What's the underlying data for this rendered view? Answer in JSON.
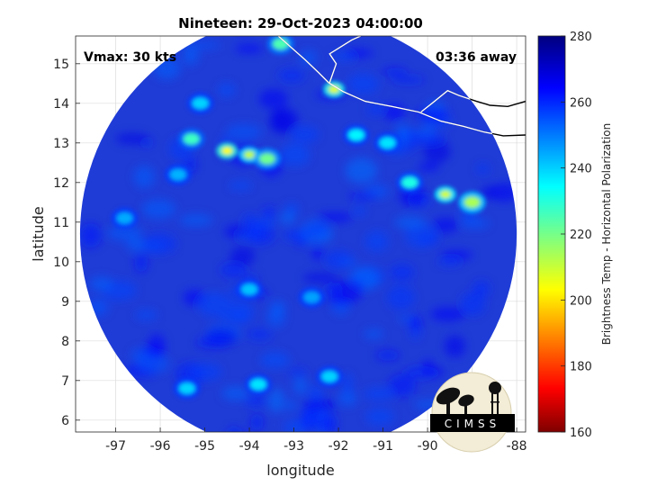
{
  "chart_data": {
    "type": "heatmap",
    "title": "Nineteen: 29-Oct-2023 04:00:00",
    "xlabel": "longitude",
    "ylabel": "latitude",
    "xlim": [
      -97.9,
      -87.8
    ],
    "ylim": [
      5.7,
      15.7
    ],
    "x_ticks": [
      -97,
      -96,
      -95,
      -94,
      -93,
      -92,
      -91,
      -90,
      -89,
      -88
    ],
    "x_tick_labels": [
      "-97",
      "-96",
      "-95",
      "-94",
      "-93",
      "-92",
      "-91",
      "-90",
      "-89",
      "-88"
    ],
    "y_ticks": [
      6,
      7,
      8,
      9,
      10,
      11,
      12,
      13,
      14,
      15
    ],
    "y_tick_labels": [
      "6",
      "7",
      "8",
      "9",
      "10",
      "11",
      "12",
      "13",
      "14",
      "15"
    ],
    "grid": true,
    "colorbar": {
      "label": "Brightness Temp - Horizontal Polarization",
      "range": [
        160,
        280
      ],
      "ticks": [
        160,
        180,
        200,
        220,
        240,
        260,
        280
      ],
      "tick_labels": [
        "160",
        "180",
        "200",
        "220",
        "240",
        "260",
        "280"
      ],
      "colormap": "jet"
    },
    "annotations": {
      "vmax": "Vmax: 30 kts",
      "time_away": "03:36 away"
    },
    "swath": {
      "center_lon": -92.9,
      "center_lat": 10.7,
      "radius_deg": 4.9
    },
    "features": [
      {
        "lon": -94.5,
        "lat": 12.8,
        "tb": 205
      },
      {
        "lon": -94.0,
        "lat": 12.7,
        "tb": 212
      },
      {
        "lon": -93.6,
        "lat": 12.6,
        "tb": 222
      },
      {
        "lon": -92.1,
        "lat": 14.35,
        "tb": 208
      },
      {
        "lon": -89.6,
        "lat": 11.7,
        "tb": 210
      },
      {
        "lon": -89.0,
        "lat": 11.5,
        "tb": 215
      },
      {
        "lon": -90.4,
        "lat": 12.0,
        "tb": 232
      },
      {
        "lon": -95.3,
        "lat": 13.1,
        "tb": 228
      },
      {
        "lon": -93.3,
        "lat": 15.5,
        "tb": 226
      },
      {
        "lon": -91.6,
        "lat": 13.2,
        "tb": 236
      },
      {
        "lon": -90.9,
        "lat": 13.0,
        "tb": 238
      },
      {
        "lon": -95.6,
        "lat": 12.2,
        "tb": 244
      },
      {
        "lon": -94.0,
        "lat": 9.3,
        "tb": 242
      },
      {
        "lon": -93.8,
        "lat": 6.9,
        "tb": 238
      },
      {
        "lon": -92.2,
        "lat": 7.1,
        "tb": 240
      },
      {
        "lon": -95.4,
        "lat": 6.8,
        "tb": 240
      },
      {
        "lon": -96.8,
        "lat": 11.1,
        "tb": 245
      },
      {
        "lon": -95.1,
        "lat": 14.0,
        "tb": 240
      },
      {
        "lon": -92.6,
        "lat": 9.1,
        "tb": 246
      }
    ]
  },
  "logo": {
    "text": "CIMSS"
  },
  "colors": {
    "background": "#1f3cd6",
    "coast": "#ffffff",
    "coast_outside": "#000000"
  }
}
